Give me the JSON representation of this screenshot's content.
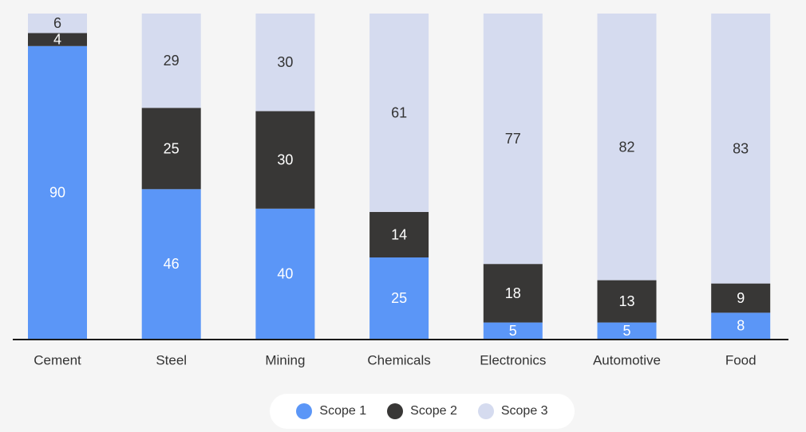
{
  "chart_data": {
    "type": "bar",
    "stacked": true,
    "categories": [
      "Cement",
      "Steel",
      "Mining",
      "Chemicals",
      "Electronics",
      "Automotive",
      "Food"
    ],
    "series": [
      {
        "name": "Scope 1",
        "color": "#5b96f7",
        "label_color": "#ffffff",
        "values": [
          90,
          46,
          40,
          25,
          5,
          5,
          8
        ]
      },
      {
        "name": "Scope 2",
        "color": "#383736",
        "label_color": "#ffffff",
        "values": [
          4,
          25,
          30,
          14,
          18,
          13,
          9
        ]
      },
      {
        "name": "Scope 3",
        "color": "#d5dbef",
        "label_color": "#333333",
        "values": [
          6,
          29,
          30,
          61,
          77,
          82,
          83
        ]
      }
    ],
    "ylim": [
      0,
      100
    ],
    "grid": false,
    "legend_position": "bottom-center"
  }
}
